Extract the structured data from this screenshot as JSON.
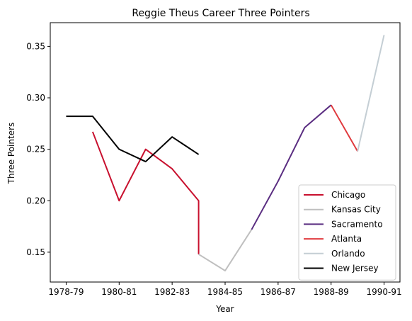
{
  "chart_data": {
    "type": "line",
    "title": "Reggie Theus Career Three Pointers",
    "xlabel": "Year",
    "ylabel": "Three Pointers",
    "x_ticks": [
      "1978-79",
      "1980-81",
      "1982-83",
      "1984-85",
      "1986-87",
      "1988-89",
      "1990-91"
    ],
    "x_tick_positions": [
      0,
      2,
      4,
      6,
      8,
      10,
      12
    ],
    "xlim": [
      -0.6,
      12.6
    ],
    "y_ticks": [
      "0.15",
      "0.20",
      "0.25",
      "0.30",
      "0.35"
    ],
    "y_tick_values": [
      0.15,
      0.2,
      0.25,
      0.3,
      0.35
    ],
    "ylim": [
      0.121,
      0.373
    ],
    "grid": false,
    "legend_position": "lower-right",
    "series": [
      {
        "name": "Chicago",
        "color": "#c8102e",
        "x": [
          1,
          2,
          3,
          4,
          5,
          5
        ],
        "y": [
          0.267,
          0.2,
          0.25,
          0.231,
          0.2,
          0.148
        ]
      },
      {
        "name": "Kansas City",
        "color": "#bfbfbf",
        "x": [
          5,
          6,
          7
        ],
        "y": [
          0.148,
          0.132,
          0.172
        ]
      },
      {
        "name": "Sacramento",
        "color": "#5a2d81",
        "x": [
          7,
          8,
          9,
          10
        ],
        "y": [
          0.172,
          0.219,
          0.271,
          0.293
        ]
      },
      {
        "name": "Atlanta",
        "color": "#e03a3e",
        "x": [
          10,
          11
        ],
        "y": [
          0.293,
          0.248
        ]
      },
      {
        "name": "Orlando",
        "color": "#c4ced4",
        "x": [
          11,
          12
        ],
        "y": [
          0.248,
          0.361
        ]
      },
      {
        "name": "New Jersey",
        "color": "#000000",
        "x": [
          0,
          1,
          2,
          3,
          4,
          5
        ],
        "y": [
          0.282,
          0.282,
          0.25,
          0.238,
          0.262,
          0.245
        ]
      }
    ]
  }
}
